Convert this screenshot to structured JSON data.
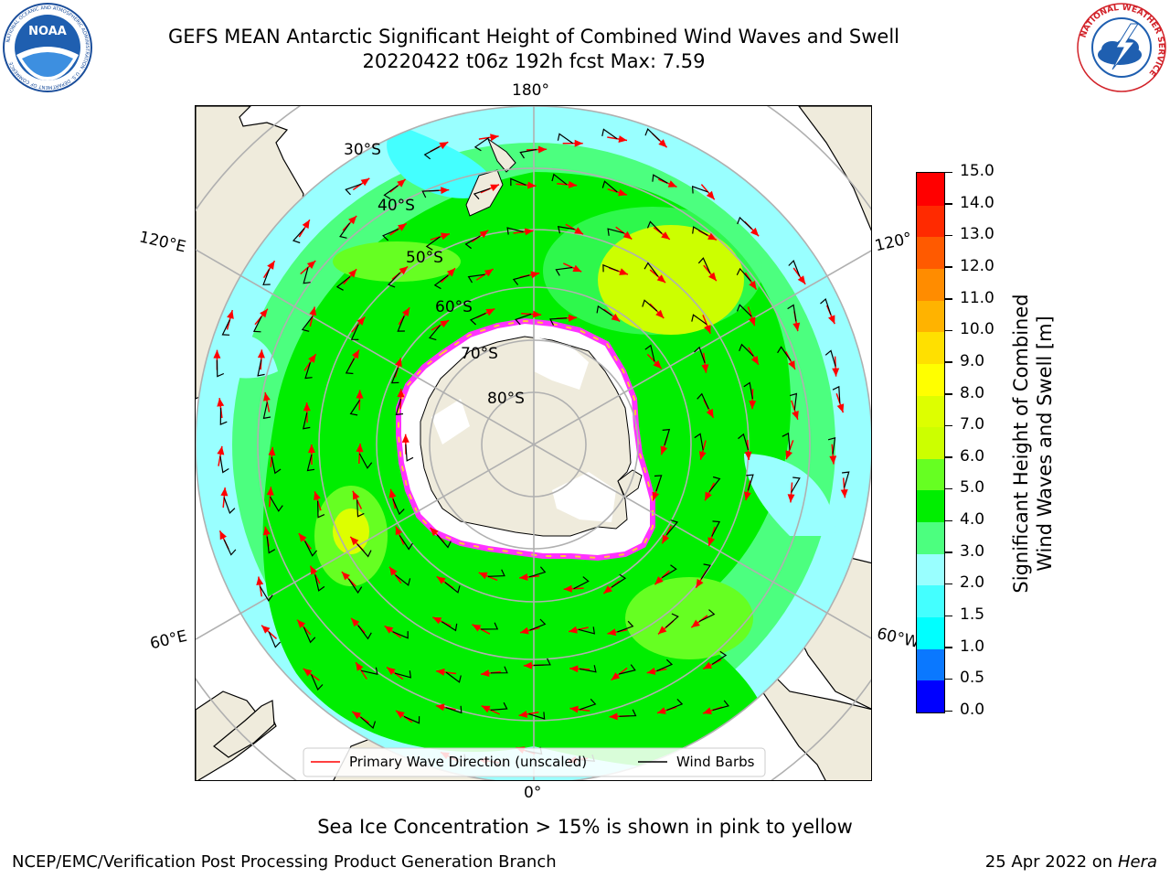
{
  "header": {
    "title_line1": "GEFS MEAN Antarctic Significant Height of Combined Wind Waves and Swell",
    "title_line2": "20220422 t06z 192h fcst   Max: 7.59"
  },
  "logos": {
    "noaa_text": "NOAA",
    "noaa_ring": "NATIONAL OCEANIC AND ATMOSPHERIC ADMINISTRATION · U.S. DEPARTMENT OF COMMERCE",
    "nws_ring": "NATIONAL WEATHER SERVICE"
  },
  "map": {
    "lon_labels": {
      "top": "180°",
      "upper_left": "120°E",
      "upper_right": "120°",
      "lower_left": "60°E",
      "lower_right": "60°W",
      "bottom": "0°"
    },
    "lat_labels": [
      "30°S",
      "40°S",
      "50°S",
      "60°S",
      "70°S",
      "80°S"
    ],
    "legend": {
      "wave_label": "Primary Wave Direction (unscaled)",
      "barb_label": "Wind Barbs",
      "wave_color": "#ff0000",
      "barb_color": "#000000"
    },
    "colors": {
      "land": "#efebdc",
      "ice": "#ffffff",
      "ice_edge_pink": "#ff33ff",
      "ice_edge_yellow": "#ffcc33"
    }
  },
  "colorbar": {
    "label_line1": "Significant Height of Combined",
    "label_line2": "Wind Waves and Swell [m]",
    "ticks": [
      "0.0",
      "0.5",
      "1.0",
      "1.5",
      "2.0",
      "3.0",
      "4.0",
      "5.0",
      "6.0",
      "7.0",
      "8.0",
      "9.0",
      "10.0",
      "11.0",
      "12.0",
      "13.0",
      "14.0",
      "15.0"
    ],
    "colors": [
      "#0000ff",
      "#0a78ff",
      "#00ffff",
      "#44ffff",
      "#99ffff",
      "#4cff7f",
      "#00ee00",
      "#66ff22",
      "#ccff00",
      "#ddff00",
      "#ffff00",
      "#ffe000",
      "#ffb300",
      "#ff8c00",
      "#ff5a00",
      "#ff2a00",
      "#ff0000"
    ]
  },
  "footer": {
    "sea_ice_note": "Sea Ice Concentration > 15% is shown in pink to yellow",
    "credit": "NCEP/EMC/Verification Post Processing Product Generation Branch",
    "date": "25 Apr 2022 on ",
    "machine": "Hera"
  }
}
